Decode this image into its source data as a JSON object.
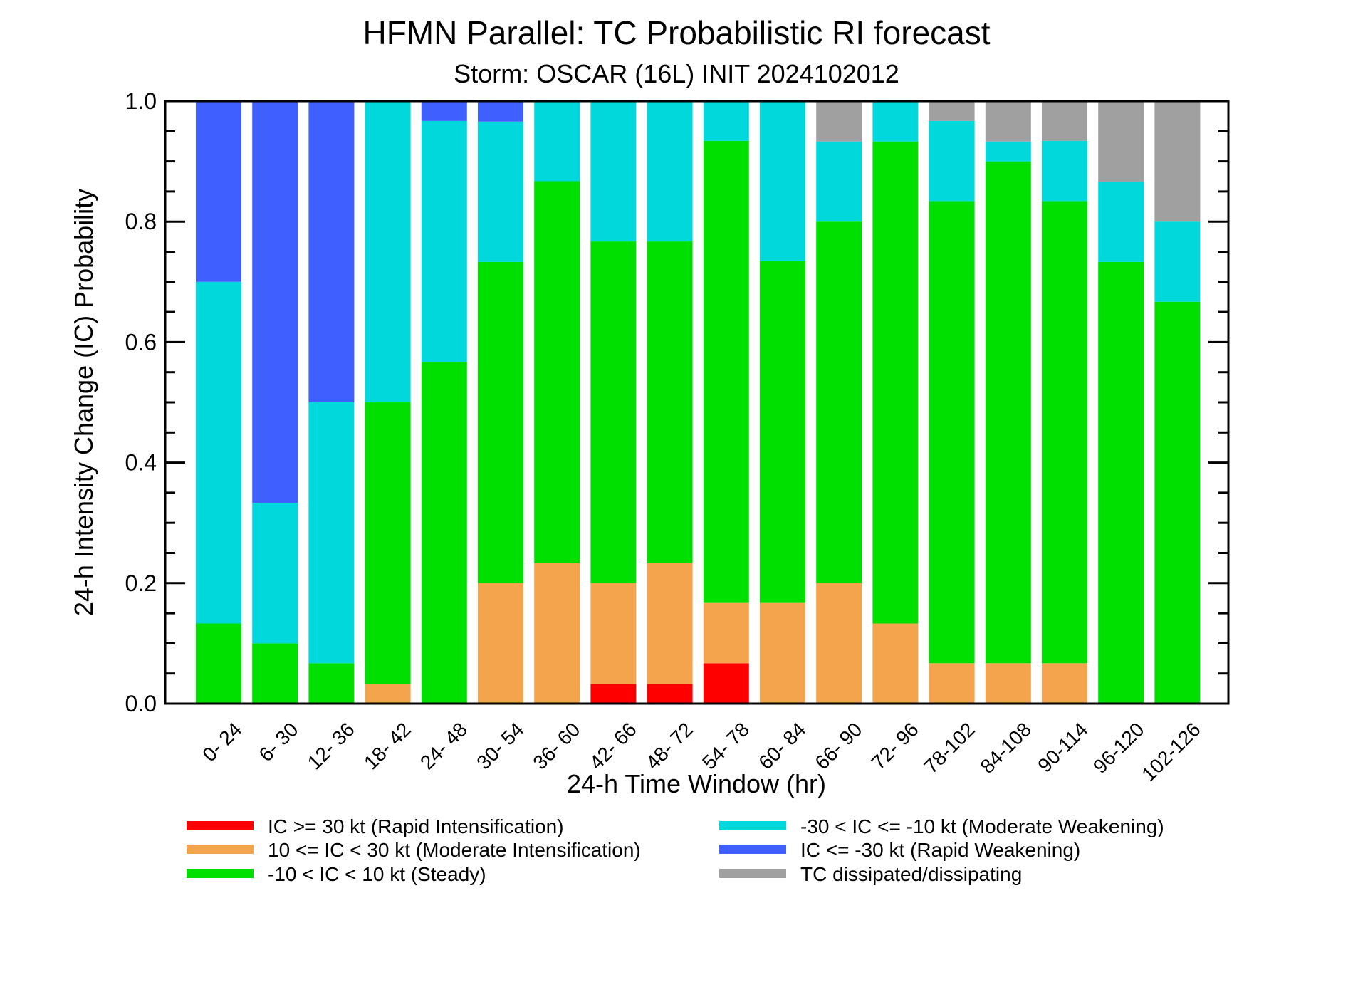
{
  "chart_data": {
    "type": "bar",
    "stacked": true,
    "title": "HFMN Parallel: TC Probabilistic RI forecast",
    "subtitle": "Storm: OSCAR (16L) INIT 2024102012",
    "xlabel": "24-h Time Window (hr)",
    "ylabel": "24-h Intensity Change (IC) Probability",
    "ylim": [
      0,
      1
    ],
    "yticks": [
      "0.0",
      "0.2",
      "0.4",
      "0.6",
      "0.8",
      "1.0"
    ],
    "categories": [
      "0- 24",
      "6- 30",
      "12- 36",
      "18- 42",
      "24- 48",
      "30- 54",
      "36- 60",
      "42- 66",
      "48- 72",
      "54- 78",
      "60- 84",
      "66- 90",
      "72- 96",
      "78-102",
      "84-108",
      "90-114",
      "96-120",
      "102-126"
    ],
    "legend_position": "bottom",
    "series": [
      {
        "name": "IC >= 30 kt (Rapid Intensification)",
        "color": "#ff0000",
        "values": [
          0,
          0,
          0,
          0,
          0,
          0,
          0,
          0.033,
          0.033,
          0.067,
          0,
          0,
          0,
          0,
          0,
          0,
          0,
          0
        ]
      },
      {
        "name": "10 <= IC < 30 kt (Moderate Intensification)",
        "color": "#f4a44c",
        "values": [
          0,
          0,
          0,
          0.033,
          0,
          0.2,
          0.233,
          0.167,
          0.2,
          0.1,
          0.167,
          0.2,
          0.133,
          0.067,
          0.067,
          0.067,
          0,
          0
        ]
      },
      {
        "name": "-10 < IC < 10 kt (Steady)",
        "color": "#00e000",
        "values": [
          0.133,
          0.1,
          0.067,
          0.467,
          0.567,
          0.533,
          0.634,
          0.567,
          0.534,
          0.767,
          0.567,
          0.6,
          0.8,
          0.767,
          0.833,
          0.767,
          0.733,
          0.667
        ]
      },
      {
        "name": "-30 < IC <= -10 kt (Moderate Weakening)",
        "color": "#00d8dc",
        "values": [
          0.567,
          0.233,
          0.433,
          0.5,
          0.4,
          0.233,
          0.133,
          0.233,
          0.233,
          0.066,
          0.266,
          0.133,
          0.067,
          0.133,
          0.033,
          0.1,
          0.133,
          0.133
        ]
      },
      {
        "name": "IC <= -30 kt (Rapid Weakening)",
        "color": "#3f60ff",
        "values": [
          0.3,
          0.667,
          0.5,
          0,
          0.033,
          0.034,
          0,
          0,
          0,
          0,
          0,
          0,
          0,
          0,
          0,
          0,
          0,
          0
        ]
      },
      {
        "name": "TC dissipated/dissipating",
        "color": "#a0a0a0",
        "values": [
          0,
          0,
          0,
          0,
          0,
          0,
          0,
          0,
          0,
          0,
          0,
          0.067,
          0,
          0.033,
          0.067,
          0.066,
          0.134,
          0.2
        ]
      }
    ]
  }
}
